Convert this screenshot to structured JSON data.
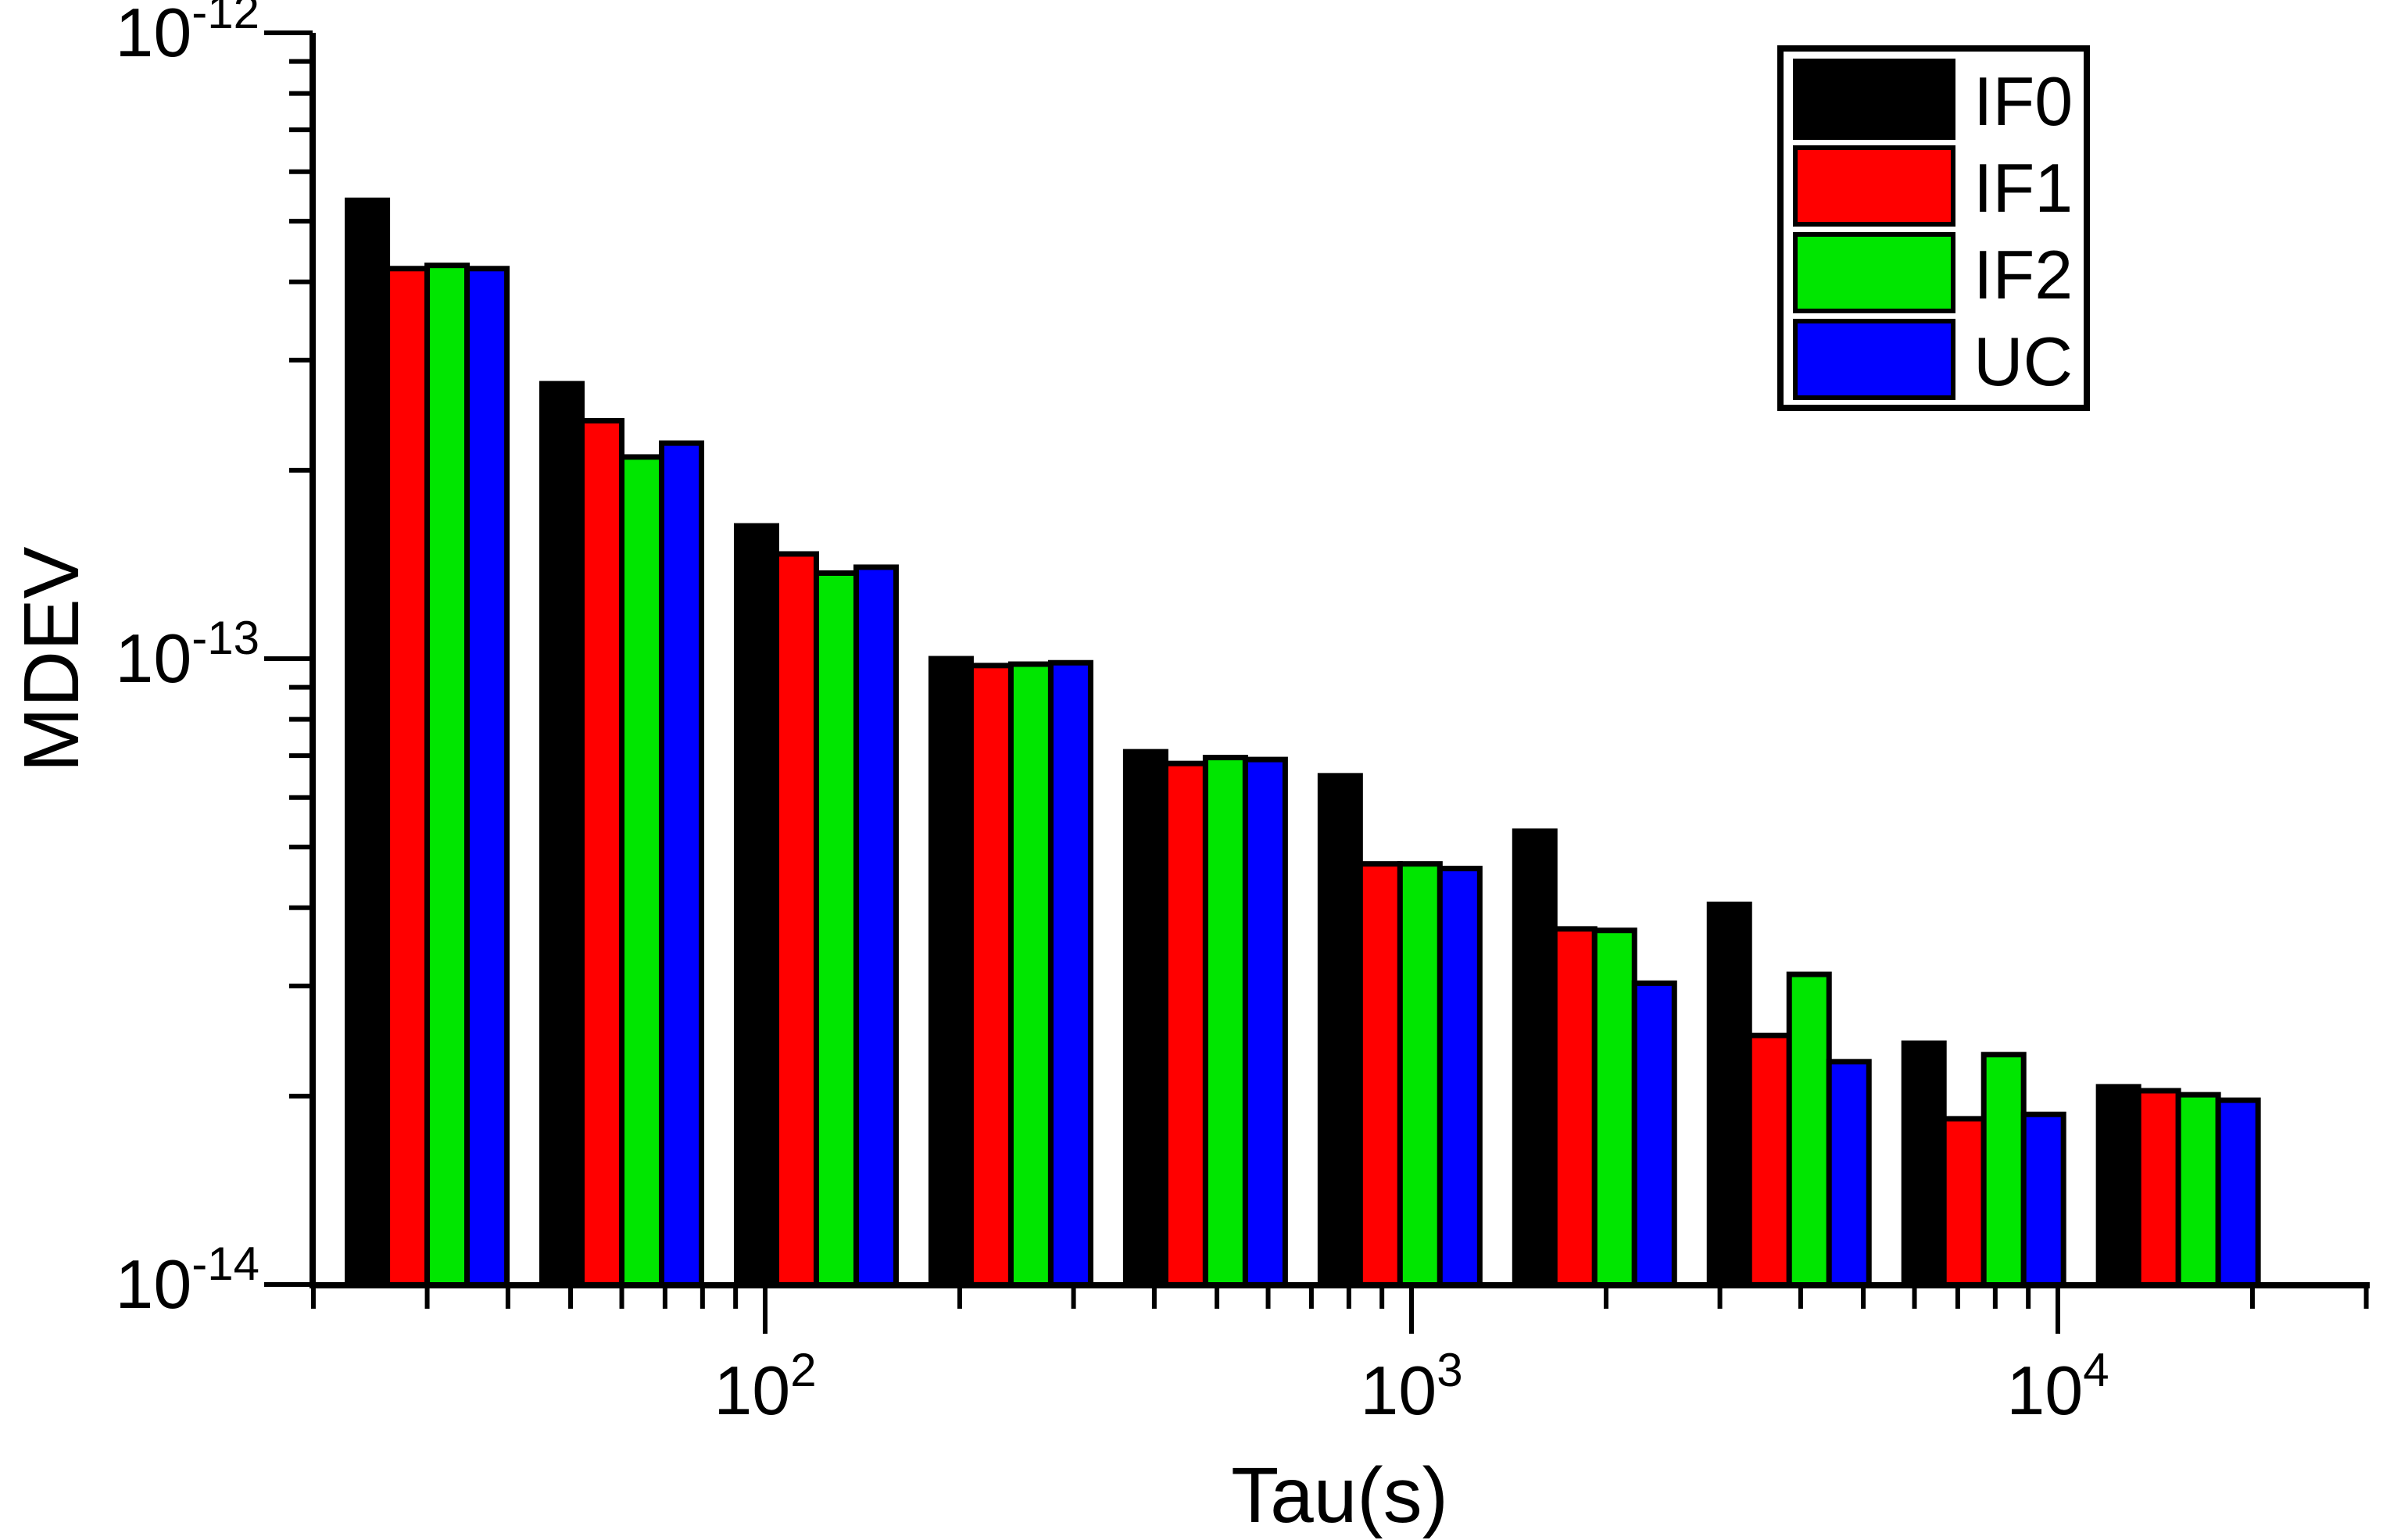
{
  "figure_type": "grouped bar chart, log-log axes",
  "axes": {
    "x": {
      "title": "Tau(s)",
      "scale": "log",
      "range": [
        20,
        30000
      ],
      "major_tick_labels": [
        {
          "value": 100,
          "base": "10",
          "sup": "2"
        },
        {
          "value": 1000,
          "base": "10",
          "sup": "3"
        },
        {
          "value": 10000,
          "base": "10",
          "sup": "4"
        }
      ],
      "minor_ticks": [
        20,
        30,
        40,
        50,
        60,
        70,
        80,
        90,
        200,
        300,
        400,
        500,
        600,
        700,
        800,
        900,
        2000,
        3000,
        4000,
        5000,
        6000,
        7000,
        8000,
        9000,
        20000,
        30000
      ]
    },
    "y": {
      "title": "MDEV",
      "scale": "log",
      "range": [
        1e-14,
        1e-12
      ],
      "major_tick_labels": [
        {
          "value": 1e-12,
          "base": "10",
          "sup": "-12"
        },
        {
          "value": 1e-13,
          "base": "10",
          "sup": "-13"
        },
        {
          "value": 1e-14,
          "base": "10",
          "sup": "-14"
        }
      ],
      "minor_ticks": [
        2e-14,
        3e-14,
        4e-14,
        5e-14,
        6e-14,
        7e-14,
        8e-14,
        9e-14,
        2e-13,
        3e-13,
        4e-13,
        5e-13,
        6e-13,
        7e-13,
        8e-13,
        9e-13
      ]
    }
  },
  "legend": {
    "position": "top-right",
    "items": [
      {
        "label": "IF0",
        "color": "#000000"
      },
      {
        "label": "IF1",
        "color": "#ff0000"
      },
      {
        "label": "IF2",
        "color": "#00e600"
      },
      {
        "label": "UC",
        "color": "#0000ff"
      }
    ]
  },
  "chart_data": {
    "type": "bar",
    "x_scale": "log",
    "y_scale": "log",
    "title": "",
    "xlabel": "Tau(s)",
    "ylabel": "MDEV",
    "xlim": [
      20,
      30000
    ],
    "ylim": [
      1e-14,
      1e-12
    ],
    "grid": false,
    "legend_position": "top-right",
    "categories": [
      30,
      60,
      120,
      240,
      480,
      960,
      1920,
      3840,
      7680,
      15360
    ],
    "series": [
      {
        "name": "IF0",
        "color": "#000000",
        "values": [
          5.4e-13,
          2.75e-13,
          1.63e-13,
          1e-13,
          7.1e-14,
          6.5e-14,
          5.3e-14,
          4.05e-14,
          2.43e-14,
          2.07e-14
        ]
      },
      {
        "name": "IF1",
        "color": "#ff0000",
        "values": [
          4.2e-13,
          2.4e-13,
          1.47e-13,
          9.75e-14,
          6.8e-14,
          4.7e-14,
          3.7e-14,
          2.5e-14,
          1.84e-14,
          2.04e-14
        ]
      },
      {
        "name": "IF2",
        "color": "#00e600",
        "values": [
          4.25e-13,
          2.1e-13,
          1.37e-13,
          9.8e-14,
          6.95e-14,
          4.7e-14,
          3.68e-14,
          3.13e-14,
          2.33e-14,
          2.01e-14
        ]
      },
      {
        "name": "UC",
        "color": "#0000ff",
        "values": [
          4.2e-13,
          2.21e-13,
          1.4e-13,
          9.85e-14,
          6.9e-14,
          4.62e-14,
          3.03e-14,
          2.27e-14,
          1.87e-14,
          1.97e-14
        ]
      }
    ]
  }
}
